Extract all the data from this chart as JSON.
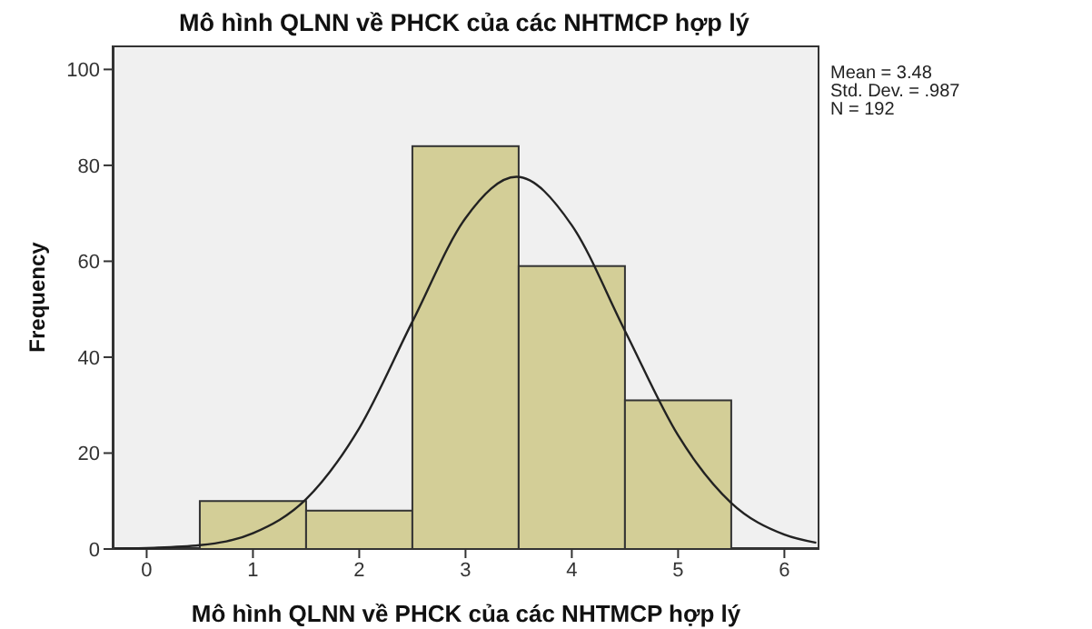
{
  "chart_data": {
    "type": "histogram",
    "title": "Mô hình QLNN về PHCK của các NHTMCP hợp lý",
    "xlabel": "Mô hình QLNN về PHCK của các NHTMCP hợp lý",
    "ylabel": "Frequency",
    "annotations": [
      "Mean = 3.48",
      "Std. Dev. = .987",
      "N = 192"
    ],
    "series": [
      {
        "color": "#d3ce97",
        "bins": [
          0.5,
          1.5,
          2.5,
          3.5,
          4.5,
          5.5
        ],
        "values": [
          10,
          8,
          84,
          59,
          31
        ]
      },
      {
        "type": "line",
        "color": "#222222",
        "x": [
          -0.3,
          0,
          0.5,
          1,
          1.5,
          2,
          2.5,
          3,
          3.48,
          4,
          4.5,
          5,
          5.5,
          6,
          6.3
        ],
        "values": [
          0,
          0.2,
          0.8,
          3.3,
          10.4,
          25.2,
          47.4,
          69,
          77.6,
          67.5,
          45.5,
          23.7,
          9.6,
          3,
          1.3
        ]
      }
    ],
    "xlim": [
      -0.32,
      6.33
    ],
    "xticks": [
      0,
      1,
      2,
      3,
      4,
      5,
      6
    ],
    "ylim": [
      0,
      105
    ],
    "yticks": [
      0,
      20,
      40,
      60,
      80,
      100
    ],
    "grid": false,
    "legend": false,
    "marker": "none",
    "line_style": "solid"
  }
}
